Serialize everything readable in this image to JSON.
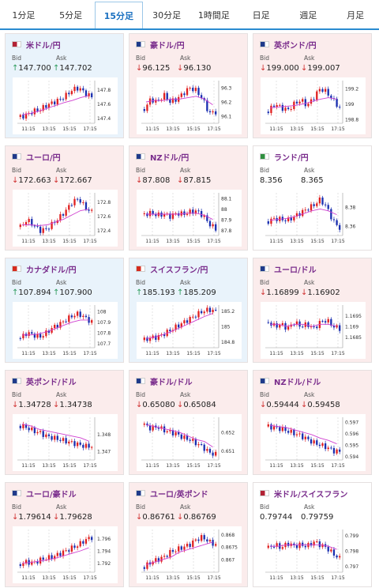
{
  "tabs": [
    {
      "label": "1分足",
      "active": false
    },
    {
      "label": "5分足",
      "active": false
    },
    {
      "label": "15分足",
      "active": true
    },
    {
      "label": "30分足",
      "active": false
    },
    {
      "label": "1時間足",
      "active": false
    },
    {
      "label": "日足",
      "active": false
    },
    {
      "label": "週足",
      "active": false
    },
    {
      "label": "月足",
      "active": false
    }
  ],
  "bid_label": "Bid",
  "ask_label": "Ask",
  "x_ticks": [
    "11:15",
    "13:15",
    "15:15",
    "17:15"
  ],
  "colors": {
    "up_candle": "#e02020",
    "down_candle": "#1a2fb0",
    "ma_line": "#d040d0",
    "up_arrow": "#2a9a5a",
    "down_arrow": "#d03030"
  },
  "pairs": [
    {
      "name": "米ドル/円",
      "flag": "us-jp-flag-icon",
      "dir": "up",
      "bid": "147.700",
      "ask": "147.702",
      "y_ticks": [
        "147.8",
        "147.6",
        "147.4"
      ],
      "chart_data": {
        "type": "candlestick",
        "y_ticks": [
          147.8,
          147.6,
          147.4
        ],
        "ylim": [
          147.33,
          147.93
        ],
        "trend": [
          147.42,
          147.45,
          147.5,
          147.52,
          147.58,
          147.62,
          147.66,
          147.72,
          147.8,
          147.83,
          147.75,
          147.7
        ],
        "ma": [
          147.45,
          147.47,
          147.5,
          147.54,
          147.58,
          147.62,
          147.65,
          147.69,
          147.72
        ]
      }
    },
    {
      "name": "豪ドル/円",
      "flag": "au-jp-flag-icon",
      "dir": "down",
      "bid": "96.125",
      "ask": "96.130",
      "y_ticks": [
        "96.3",
        "96.2",
        "96.1"
      ],
      "chart_data": {
        "type": "candlestick",
        "y_ticks": [
          96.3,
          96.2,
          96.1
        ],
        "ylim": [
          96.05,
          96.35
        ],
        "trend": [
          96.15,
          96.22,
          96.2,
          96.25,
          96.2,
          96.22,
          96.26,
          96.3,
          96.28,
          96.22,
          96.12,
          96.13
        ],
        "ma": [
          96.2,
          96.21,
          96.21,
          96.22,
          96.22,
          96.23,
          96.24,
          96.22,
          96.18
        ]
      }
    },
    {
      "name": "英ポンド/円",
      "flag": "uk-jp-flag-icon",
      "dir": "down",
      "bid": "199.000",
      "ask": "199.007",
      "y_ticks": [
        "199.2",
        "199",
        "198.8"
      ],
      "chart_data": {
        "type": "candlestick",
        "y_ticks": [
          199.2,
          199,
          198.8
        ],
        "ylim": [
          198.75,
          199.3
        ],
        "trend": [
          198.9,
          199.0,
          198.95,
          198.92,
          199.0,
          199.05,
          198.98,
          199.08,
          199.2,
          199.15,
          199.05,
          198.95
        ],
        "ma": [
          198.95,
          198.96,
          198.97,
          198.98,
          199.0,
          199.03,
          199.06,
          199.08,
          199.06
        ]
      }
    },
    {
      "name": "ユーロ/円",
      "flag": "eu-jp-flag-icon",
      "dir": "down",
      "bid": "172.663",
      "ask": "172.667",
      "y_ticks": [
        "172.8",
        "172.6",
        "172.4"
      ],
      "chart_data": {
        "type": "candlestick",
        "y_ticks": [
          172.8,
          172.6,
          172.4
        ],
        "ylim": [
          172.33,
          172.93
        ],
        "trend": [
          172.45,
          172.55,
          172.48,
          172.4,
          172.42,
          172.5,
          172.58,
          172.68,
          172.8,
          172.85,
          172.72,
          172.66
        ],
        "ma": [
          172.48,
          172.48,
          172.47,
          172.48,
          172.52,
          172.56,
          172.62,
          172.68,
          172.7
        ]
      }
    },
    {
      "name": "NZドル/円",
      "flag": "nz-jp-flag-icon",
      "dir": "down",
      "bid": "87.808",
      "ask": "87.815",
      "y_ticks": [
        "88.1",
        "88",
        "87.9",
        "87.8"
      ],
      "chart_data": {
        "type": "candlestick",
        "y_ticks": [
          88.1,
          88.0,
          87.9,
          87.8
        ],
        "ylim": [
          87.75,
          88.15
        ],
        "trend": [
          87.95,
          87.96,
          87.94,
          87.95,
          87.93,
          87.96,
          87.95,
          87.97,
          87.98,
          87.94,
          87.86,
          87.81
        ],
        "ma": [
          87.95,
          87.95,
          87.95,
          87.95,
          87.95,
          87.96,
          87.96,
          87.94,
          87.9
        ]
      }
    },
    {
      "name": "ランド/円",
      "flag": "za-jp-flag-icon",
      "dir": "flat",
      "bid": "8.356",
      "ask": "8.365",
      "y_ticks": [
        "8.38",
        "8.36"
      ],
      "chart_data": {
        "type": "candlestick",
        "y_ticks": [
          8.38,
          8.36
        ],
        "ylim": [
          8.35,
          8.395
        ],
        "trend": [
          8.365,
          8.368,
          8.367,
          8.366,
          8.37,
          8.374,
          8.378,
          8.382,
          8.388,
          8.38,
          8.365,
          8.358
        ],
        "ma": [
          8.366,
          8.367,
          8.368,
          8.37,
          8.373,
          8.376,
          8.378,
          8.376,
          8.372
        ]
      }
    },
    {
      "name": "カナダドル/円",
      "flag": "ca-jp-flag-icon",
      "dir": "up",
      "bid": "107.894",
      "ask": "107.900",
      "y_ticks": [
        "108",
        "107.9",
        "107.8",
        "107.7"
      ],
      "chart_data": {
        "type": "candlestick",
        "y_ticks": [
          108,
          107.9,
          107.8,
          107.7
        ],
        "ylim": [
          107.66,
          108.06
        ],
        "trend": [
          107.75,
          107.8,
          107.78,
          107.76,
          107.8,
          107.85,
          107.88,
          107.92,
          107.96,
          107.98,
          107.94,
          107.9
        ],
        "ma": [
          107.78,
          107.78,
          107.79,
          107.81,
          107.84,
          107.87,
          107.9,
          107.92,
          107.92
        ]
      }
    },
    {
      "name": "スイスフラン/円",
      "flag": "ch-jp-flag-icon",
      "dir": "up",
      "bid": "185.193",
      "ask": "185.209",
      "y_ticks": [
        "185.2",
        "185",
        "184.8"
      ],
      "chart_data": {
        "type": "candlestick",
        "y_ticks": [
          185.2,
          185,
          184.8
        ],
        "ylim": [
          184.72,
          185.28
        ],
        "trend": [
          184.82,
          184.85,
          184.86,
          184.9,
          184.95,
          185.0,
          185.05,
          185.1,
          185.15,
          185.2,
          185.22,
          185.2
        ],
        "ma": [
          184.84,
          184.86,
          184.89,
          184.93,
          184.98,
          185.03,
          185.08,
          185.13,
          185.17
        ]
      }
    },
    {
      "name": "ユーロ/ドル",
      "flag": "eu-us-flag-icon",
      "dir": "down",
      "bid": "1.16899",
      "ask": "1.16902",
      "y_ticks": [
        "1.1695",
        "1.169",
        "1.1685"
      ],
      "chart_data": {
        "type": "candlestick",
        "y_ticks": [
          1.1695,
          1.169,
          1.1685
        ],
        "ylim": [
          1.168,
          1.17
        ],
        "trend": [
          1.1692,
          1.169,
          1.1691,
          1.1689,
          1.1692,
          1.169,
          1.1691,
          1.1689,
          1.1692,
          1.1693,
          1.169,
          1.1689
        ],
        "ma": [
          1.1691,
          1.1691,
          1.169,
          1.1691,
          1.1691,
          1.169,
          1.1691,
          1.1691,
          1.169
        ]
      }
    },
    {
      "name": "英ポンド/ドル",
      "flag": "uk-us-flag-icon",
      "dir": "down",
      "bid": "1.34728",
      "ask": "1.34738",
      "y_ticks": [
        "1.348",
        "1.347"
      ],
      "chart_data": {
        "type": "candlestick",
        "y_ticks": [
          1.348,
          1.347
        ],
        "ylim": [
          1.3465,
          1.349
        ],
        "trend": [
          1.3485,
          1.3484,
          1.3482,
          1.3481,
          1.3479,
          1.3478,
          1.3477,
          1.3476,
          1.3475,
          1.3474,
          1.3473,
          1.3473
        ],
        "ma": [
          1.3486,
          1.3485,
          1.3483,
          1.3482,
          1.3481,
          1.348,
          1.3479,
          1.3478,
          1.3476
        ]
      }
    },
    {
      "name": "豪ドル/ドル",
      "flag": "au-us-flag-icon",
      "dir": "down",
      "bid": "0.65080",
      "ask": "0.65084",
      "y_ticks": [
        "0.652",
        "0.651"
      ],
      "chart_data": {
        "type": "candlestick",
        "y_ticks": [
          0.652,
          0.651
        ],
        "ylim": [
          0.6505,
          0.6528
        ],
        "trend": [
          0.6524,
          0.6522,
          0.6523,
          0.6521,
          0.652,
          0.6519,
          0.6517,
          0.6516,
          0.6514,
          0.6512,
          0.6509,
          0.6508
        ],
        "ma": [
          0.6524,
          0.6523,
          0.6522,
          0.6521,
          0.652,
          0.6518,
          0.6516,
          0.6515,
          0.6512
        ]
      }
    },
    {
      "name": "NZドル/ドル",
      "flag": "nz-us-flag-icon",
      "dir": "down",
      "bid": "0.59444",
      "ask": "0.59458",
      "y_ticks": [
        "0.597",
        "0.596",
        "0.595",
        "0.594"
      ],
      "chart_data": {
        "type": "candlestick",
        "y_ticks": [
          0.597,
          0.596,
          0.595,
          0.594
        ],
        "ylim": [
          0.5937,
          0.5974
        ],
        "trend": [
          0.5966,
          0.5965,
          0.5964,
          0.5962,
          0.596,
          0.5958,
          0.5955,
          0.5952,
          0.595,
          0.5948,
          0.5945,
          0.5944
        ],
        "ma": [
          0.5967,
          0.5966,
          0.5965,
          0.5963,
          0.5961,
          0.5959,
          0.5956,
          0.5954,
          0.5951
        ]
      }
    },
    {
      "name": "ユーロ/豪ドル",
      "flag": "eu-au-flag-icon",
      "dir": "down",
      "bid": "1.79614",
      "ask": "1.79628",
      "y_ticks": [
        "1.796",
        "1.794",
        "1.792"
      ],
      "chart_data": {
        "type": "candlestick",
        "y_ticks": [
          1.796,
          1.794,
          1.792
        ],
        "ylim": [
          1.7905,
          1.7975
        ],
        "trend": [
          1.7918,
          1.7922,
          1.792,
          1.7925,
          1.7928,
          1.793,
          1.7935,
          1.794,
          1.7945,
          1.795,
          1.7958,
          1.7962
        ],
        "ma": [
          1.792,
          1.7921,
          1.7923,
          1.7925,
          1.7928,
          1.7932,
          1.7936,
          1.794,
          1.7945
        ]
      }
    },
    {
      "name": "ユーロ/英ポンド",
      "flag": "eu-uk-flag-icon",
      "dir": "down",
      "bid": "0.86761",
      "ask": "0.86769",
      "y_ticks": [
        "0.868",
        "0.8675",
        "0.867"
      ],
      "chart_data": {
        "type": "candlestick",
        "y_ticks": [
          0.868,
          0.8675,
          0.867
        ],
        "ylim": [
          0.8665,
          0.8682
        ],
        "trend": [
          0.8667,
          0.8669,
          0.867,
          0.8671,
          0.8673,
          0.8674,
          0.8675,
          0.8676,
          0.8678,
          0.8679,
          0.8677,
          0.8676
        ],
        "ma": [
          0.8668,
          0.8669,
          0.867,
          0.8671,
          0.8673,
          0.8674,
          0.8675,
          0.8676,
          0.8677
        ]
      }
    },
    {
      "name": "米ドル/スイスフラン",
      "flag": "us-ch-flag-icon",
      "dir": "flat",
      "bid": "0.79744",
      "ask": "0.79759",
      "y_ticks": [
        "0.799",
        "0.798",
        "0.797"
      ],
      "chart_data": {
        "type": "candlestick",
        "y_ticks": [
          0.799,
          0.798,
          0.797
        ],
        "ylim": [
          0.7966,
          0.7994
        ],
        "trend": [
          0.7982,
          0.7984,
          0.7982,
          0.7985,
          0.7983,
          0.7984,
          0.7983,
          0.7986,
          0.7984,
          0.7982,
          0.7978,
          0.7975
        ],
        "ma": [
          0.7983,
          0.7983,
          0.7984,
          0.7984,
          0.7984,
          0.7984,
          0.7984,
          0.7983,
          0.7981
        ]
      }
    }
  ]
}
